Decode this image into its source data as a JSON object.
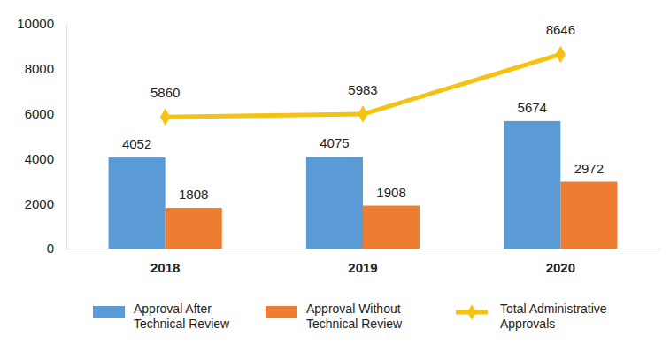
{
  "chart_data": {
    "type": "bar",
    "categories": [
      "2018",
      "2019",
      "2020"
    ],
    "series": [
      {
        "name": "Approval After Technical Review",
        "type": "bar",
        "color": "#5b9bd5",
        "values": [
          4052,
          4075,
          5674
        ]
      },
      {
        "name": "Approval Without Technical Review",
        "type": "bar",
        "color": "#ed7d31",
        "values": [
          1808,
          1908,
          2972
        ]
      },
      {
        "name": "Total Administrative Approvals",
        "type": "line",
        "color": "#f5c211",
        "marker": "diamond",
        "values": [
          5860,
          5983,
          8646
        ]
      }
    ],
    "ylim": [
      0,
      10000
    ],
    "yticks": [
      0,
      2000,
      4000,
      6000,
      8000,
      10000
    ],
    "grid": false,
    "legend": "bottom",
    "data_labels": true
  }
}
